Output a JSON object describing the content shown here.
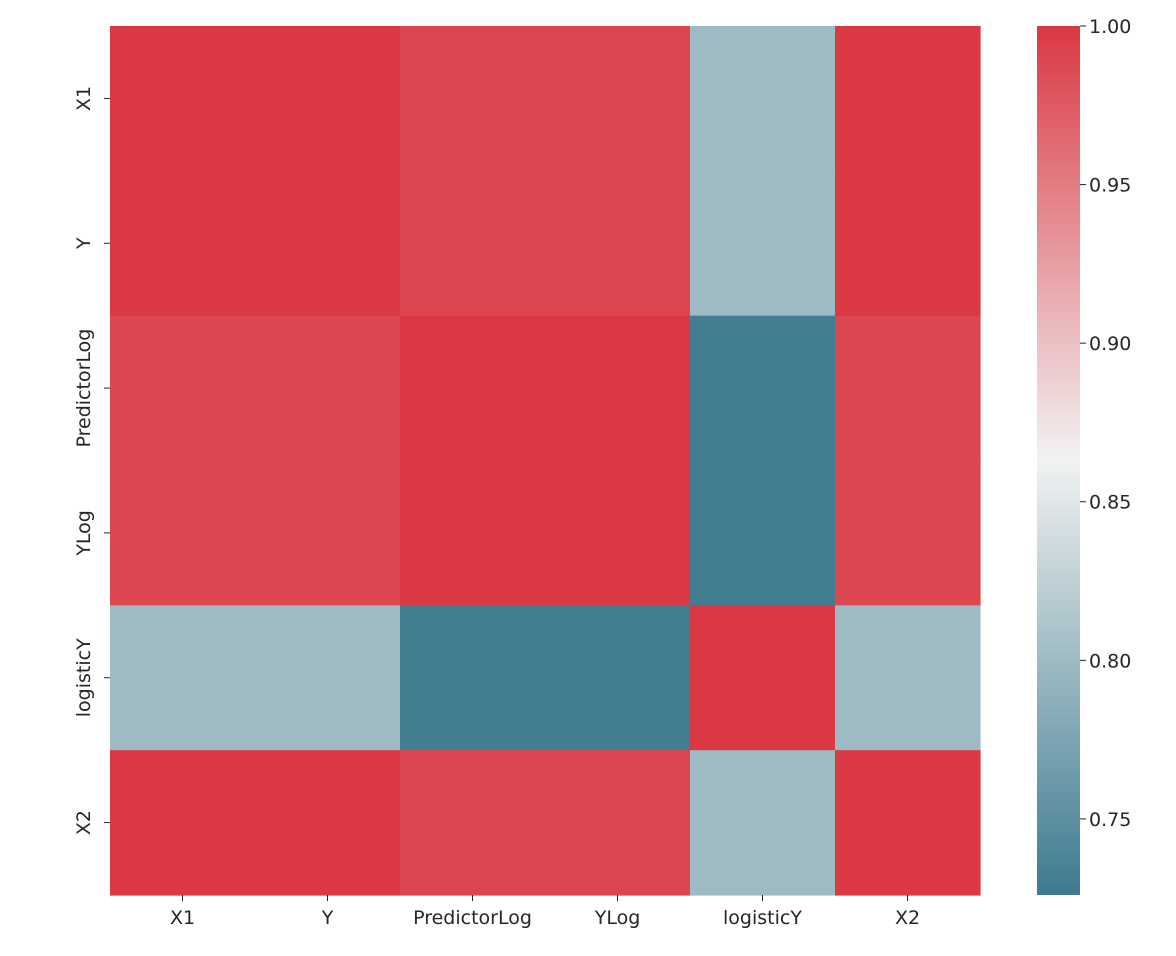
{
  "chart_data": {
    "type": "heatmap",
    "title": "",
    "xlabel": "",
    "ylabel": "",
    "x_labels": [
      "X1",
      "Y",
      "PredictorLog",
      "YLog",
      "logisticY",
      "X2"
    ],
    "y_labels": [
      "X1",
      "Y",
      "PredictorLog",
      "YLog",
      "logisticY",
      "X2"
    ],
    "matrix": [
      [
        1.0,
        1.0,
        0.99,
        0.99,
        0.8,
        1.0
      ],
      [
        1.0,
        1.0,
        0.99,
        0.99,
        0.8,
        1.0
      ],
      [
        0.99,
        0.99,
        1.0,
        1.0,
        0.73,
        0.99
      ],
      [
        0.99,
        0.99,
        1.0,
        1.0,
        0.73,
        0.99
      ],
      [
        0.8,
        0.8,
        0.73,
        0.73,
        1.0,
        0.8
      ],
      [
        1.0,
        1.0,
        0.99,
        0.99,
        0.8,
        1.0
      ]
    ],
    "colorbar": {
      "vmin": 0.726,
      "vmax": 1.0,
      "ticks": [
        0.75,
        0.8,
        0.85,
        0.9,
        0.95,
        1.0
      ],
      "tick_labels": [
        "0.75",
        "0.80",
        "0.85",
        "0.90",
        "0.95",
        "1.00"
      ],
      "colormap": "diverging",
      "low_color": "#3d7a8f",
      "mid_color": "#f2f2f2",
      "high_color": "#da3843"
    },
    "grid": false,
    "legend": "colorbar right"
  }
}
